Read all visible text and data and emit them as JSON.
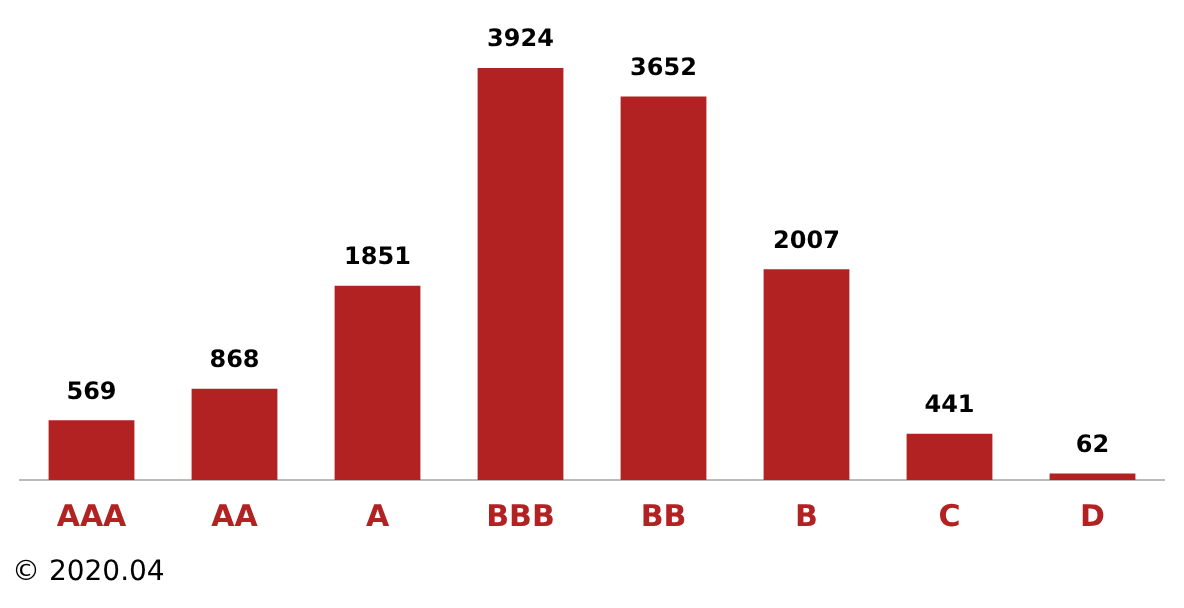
{
  "chart_data": {
    "type": "bar",
    "categories": [
      "AAA",
      "AA",
      "A",
      "BBB",
      "BB",
      "B",
      "C",
      "D"
    ],
    "values": [
      569,
      868,
      1851,
      3924,
      3652,
      2007,
      441,
      62
    ],
    "color": "#b22222",
    "data_labels": true,
    "grid": false,
    "legend": false,
    "annotations": [
      "© 2020.04"
    ]
  }
}
